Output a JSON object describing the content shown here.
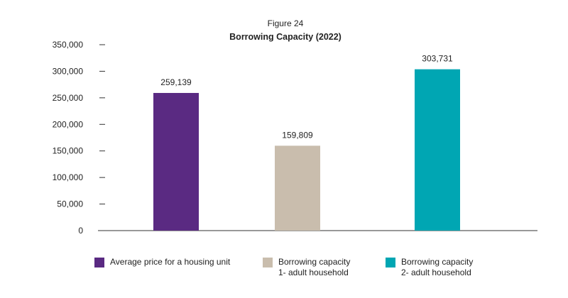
{
  "chart_data": {
    "type": "bar",
    "figure_label": "Figure 24",
    "title": "Borrowing Capacity (2022)",
    "xlabel": "",
    "ylabel": "",
    "ylim": [
      0,
      350000
    ],
    "yticks": [
      "0",
      "50,000",
      "100,000",
      "150,000",
      "200,000",
      "250,000",
      "300,000",
      "350,000"
    ],
    "grid": false,
    "legend_position": "bottom",
    "categories": [
      "Average price for a housing unit",
      "Borrowing capacity 1- adult household",
      "Borrowing capacity 2- adult household"
    ],
    "values": [
      259139,
      159809,
      303731
    ],
    "value_labels": [
      "259,139",
      "159,809",
      "303,731"
    ],
    "colors": [
      "#5a2a82",
      "#c9bdad",
      "#00a6b3"
    ]
  },
  "legend": [
    {
      "line1": "Average price for a housing unit",
      "line2": "",
      "color": "#5a2a82"
    },
    {
      "line1": "Borrowing capacity",
      "line2": "1- adult household",
      "color": "#c9bdad"
    },
    {
      "line1": "Borrowing capacity",
      "line2": "2- adult household",
      "color": "#00a6b3"
    }
  ]
}
